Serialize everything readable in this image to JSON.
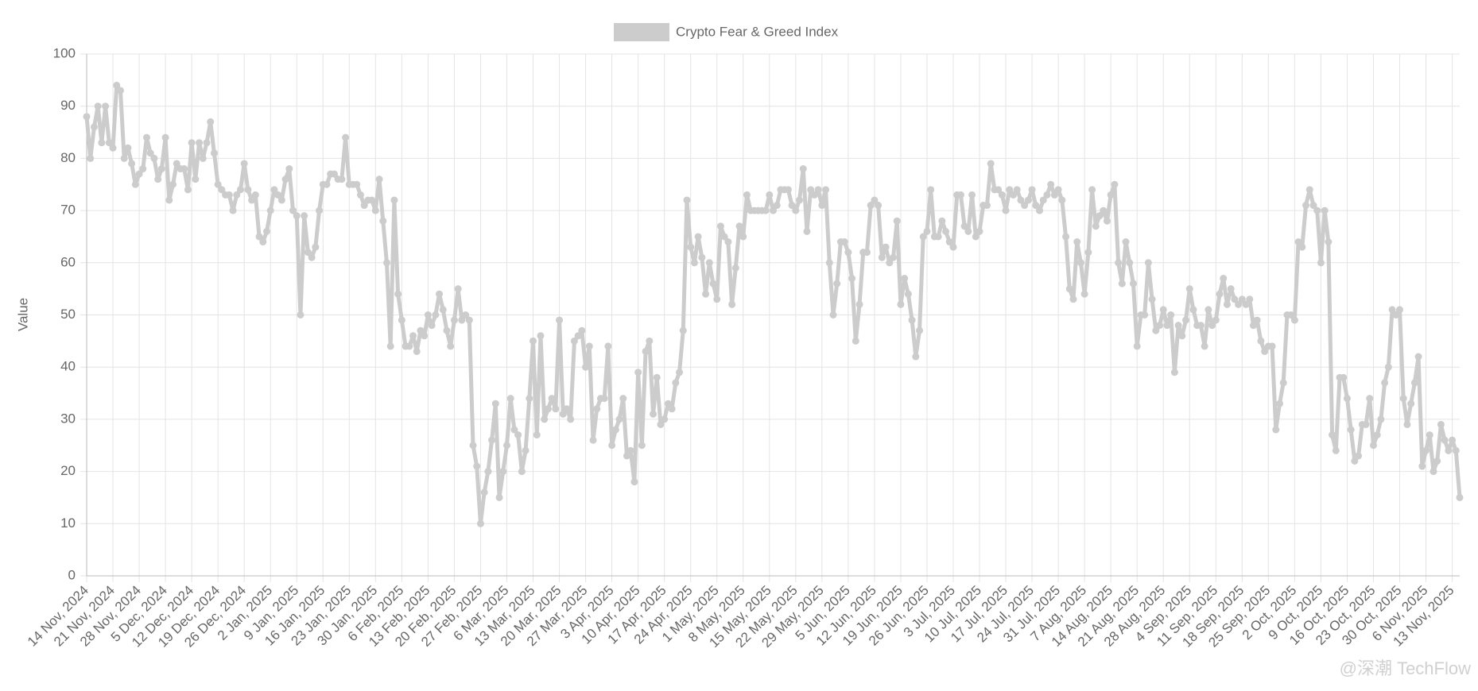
{
  "chart_data": {
    "type": "line",
    "legend": "Crypto Fear & Greed Index",
    "y_label": "Value",
    "color": "#cccccc",
    "watermark": "@深潮 TechFlow",
    "ylim": [
      0,
      100
    ],
    "yticks": [
      0,
      10,
      20,
      30,
      40,
      50,
      60,
      70,
      80,
      90,
      100
    ],
    "grid": true,
    "categories": [
      "14 Nov, 2024",
      null,
      null,
      null,
      null,
      null,
      null,
      "21 Nov, 2024",
      null,
      null,
      null,
      null,
      null,
      null,
      "28 Nov, 2024",
      null,
      null,
      null,
      null,
      null,
      null,
      "5 Dec, 2024",
      null,
      null,
      null,
      null,
      null,
      null,
      "12 Dec, 2024",
      null,
      null,
      null,
      null,
      null,
      null,
      "19 Dec, 2024",
      null,
      null,
      null,
      null,
      null,
      null,
      "26 Dec, 2024",
      null,
      null,
      null,
      null,
      null,
      null,
      "2 Jan, 2025",
      null,
      null,
      null,
      null,
      null,
      null,
      "9 Jan, 2025",
      null,
      null,
      null,
      null,
      null,
      null,
      "16 Jan, 2025",
      null,
      null,
      null,
      null,
      null,
      null,
      "23 Jan, 2025",
      null,
      null,
      null,
      null,
      null,
      null,
      "30 Jan, 2025",
      null,
      null,
      null,
      null,
      null,
      null,
      "6 Feb, 2025",
      null,
      null,
      null,
      null,
      null,
      null,
      "13 Feb, 2025",
      null,
      null,
      null,
      null,
      null,
      null,
      "20 Feb, 2025",
      null,
      null,
      null,
      null,
      null,
      null,
      "27 Feb, 2025",
      null,
      null,
      null,
      null,
      null,
      null,
      "6 Mar, 2025",
      null,
      null,
      null,
      null,
      null,
      null,
      "13 Mar, 2025",
      null,
      null,
      null,
      null,
      null,
      null,
      "20 Mar, 2025",
      null,
      null,
      null,
      null,
      null,
      null,
      "27 Mar, 2025",
      null,
      null,
      null,
      null,
      null,
      null,
      "3 Apr, 2025",
      null,
      null,
      null,
      null,
      null,
      null,
      "10 Apr, 2025",
      null,
      null,
      null,
      null,
      null,
      null,
      "17 Apr, 2025",
      null,
      null,
      null,
      null,
      null,
      null,
      "24 Apr, 2025",
      null,
      null,
      null,
      null,
      null,
      null,
      "1 May, 2025",
      null,
      null,
      null,
      null,
      null,
      null,
      "8 May, 2025",
      null,
      null,
      null,
      null,
      null,
      null,
      "15 May, 2025",
      null,
      null,
      null,
      null,
      null,
      null,
      "22 May, 2025",
      null,
      null,
      null,
      null,
      null,
      null,
      "29 May, 2025",
      null,
      null,
      null,
      null,
      null,
      null,
      "5 Jun, 2025",
      null,
      null,
      null,
      null,
      null,
      null,
      "12 Jun, 2025",
      null,
      null,
      null,
      null,
      null,
      null,
      "19 Jun, 2025",
      null,
      null,
      null,
      null,
      null,
      null,
      "26 Jun, 2025",
      null,
      null,
      null,
      null,
      null,
      null,
      "3 Jul, 2025",
      null,
      null,
      null,
      null,
      null,
      null,
      "10 Jul, 2025",
      null,
      null,
      null,
      null,
      null,
      null,
      "17 Jul, 2025",
      null,
      null,
      null,
      null,
      null,
      null,
      "24 Jul, 2025",
      null,
      null,
      null,
      null,
      null,
      null,
      "31 Jul, 2025",
      null,
      null,
      null,
      null,
      null,
      null,
      "7 Aug, 2025",
      null,
      null,
      null,
      null,
      null,
      null,
      "14 Aug, 2025",
      null,
      null,
      null,
      null,
      null,
      null,
      "21 Aug, 2025",
      null,
      null,
      null,
      null,
      null,
      null,
      "28 Aug, 2025",
      null,
      null,
      null,
      null,
      null,
      null,
      "4 Sep, 2025",
      null,
      null,
      null,
      null,
      null,
      null,
      "11 Sep, 2025",
      null,
      null,
      null,
      null,
      null,
      null,
      "18 Sep, 2025",
      null,
      null,
      null,
      null,
      null,
      null,
      "25 Sep, 2025",
      null,
      null,
      null,
      null,
      null,
      null,
      "2 Oct, 2025",
      null,
      null,
      null,
      null,
      null,
      null,
      "9 Oct, 2025",
      null,
      null,
      null,
      null,
      null,
      null,
      "16 Oct, 2025",
      null,
      null,
      null,
      null,
      null,
      null,
      "23 Oct, 2025",
      null,
      null,
      null,
      null,
      null,
      null,
      "30 Oct, 2025",
      null,
      null,
      null,
      null,
      null,
      null,
      "6 Nov, 2025",
      null,
      null,
      null,
      null,
      null,
      null,
      "13 Nov, 2025",
      null,
      null
    ],
    "values": [
      88,
      80,
      86,
      90,
      83,
      90,
      83,
      82,
      94,
      93,
      80,
      82,
      79,
      75,
      77,
      78,
      84,
      81,
      80,
      76,
      78,
      84,
      72,
      75,
      79,
      78,
      78,
      74,
      83,
      76,
      83,
      80,
      83,
      87,
      81,
      75,
      74,
      73,
      73,
      70,
      73,
      74,
      79,
      74,
      72,
      73,
      65,
      64,
      66,
      70,
      74,
      73,
      72,
      76,
      78,
      70,
      69,
      50,
      69,
      62,
      61,
      63,
      70,
      75,
      75,
      77,
      77,
      76,
      76,
      84,
      75,
      75,
      75,
      73,
      71,
      72,
      72,
      70,
      76,
      68,
      60,
      44,
      72,
      54,
      49,
      44,
      44,
      46,
      43,
      47,
      46,
      50,
      48,
      50,
      54,
      51,
      47,
      44,
      49,
      55,
      49,
      50,
      49,
      25,
      21,
      10,
      16,
      20,
      26,
      33,
      15,
      20,
      25,
      34,
      28,
      27,
      20,
      24,
      34,
      45,
      27,
      46,
      30,
      32,
      34,
      32,
      49,
      31,
      32,
      30,
      45,
      46,
      47,
      40,
      44,
      26,
      32,
      34,
      34,
      44,
      25,
      28,
      30,
      34,
      23,
      24,
      18,
      39,
      25,
      43,
      45,
      31,
      38,
      29,
      30,
      33,
      32,
      37,
      39,
      47,
      72,
      63,
      60,
      65,
      61,
      54,
      60,
      56,
      53,
      67,
      65,
      64,
      52,
      59,
      67,
      65,
      73,
      70,
      70,
      70,
      70,
      70,
      73,
      70,
      71,
      74,
      74,
      74,
      71,
      70,
      72,
      78,
      66,
      74,
      73,
      74,
      71,
      74,
      60,
      50,
      56,
      64,
      64,
      62,
      57,
      45,
      52,
      62,
      62,
      71,
      72,
      71,
      61,
      63,
      60,
      61,
      68,
      52,
      57,
      54,
      49,
      42,
      47,
      65,
      66,
      74,
      65,
      65,
      68,
      66,
      64,
      63,
      73,
      73,
      67,
      66,
      73,
      65,
      66,
      71,
      71,
      79,
      74,
      74,
      73,
      70,
      74,
      73,
      74,
      72,
      71,
      72,
      74,
      71,
      70,
      72,
      73,
      75,
      73,
      74,
      72,
      65,
      55,
      53,
      64,
      60,
      54,
      62,
      74,
      67,
      69,
      70,
      68,
      73,
      75,
      60,
      56,
      64,
      60,
      56,
      44,
      50,
      50,
      60,
      53,
      47,
      48,
      51,
      48,
      50,
      39,
      48,
      46,
      49,
      55,
      51,
      48,
      48,
      44,
      51,
      48,
      49,
      54,
      57,
      52,
      55,
      53,
      52,
      53,
      52,
      53,
      48,
      49,
      45,
      43,
      44,
      44,
      28,
      33,
      37,
      50,
      50,
      49,
      64,
      63,
      71,
      74,
      71,
      70,
      60,
      70,
      64,
      27,
      24,
      38,
      38,
      34,
      28,
      22,
      23,
      29,
      29,
      34,
      25,
      27,
      30,
      37,
      40,
      51,
      50,
      51,
      34,
      29,
      33,
      37,
      42,
      21,
      24,
      27,
      20,
      22,
      29,
      26,
      24,
      26,
      24,
      15
    ]
  }
}
